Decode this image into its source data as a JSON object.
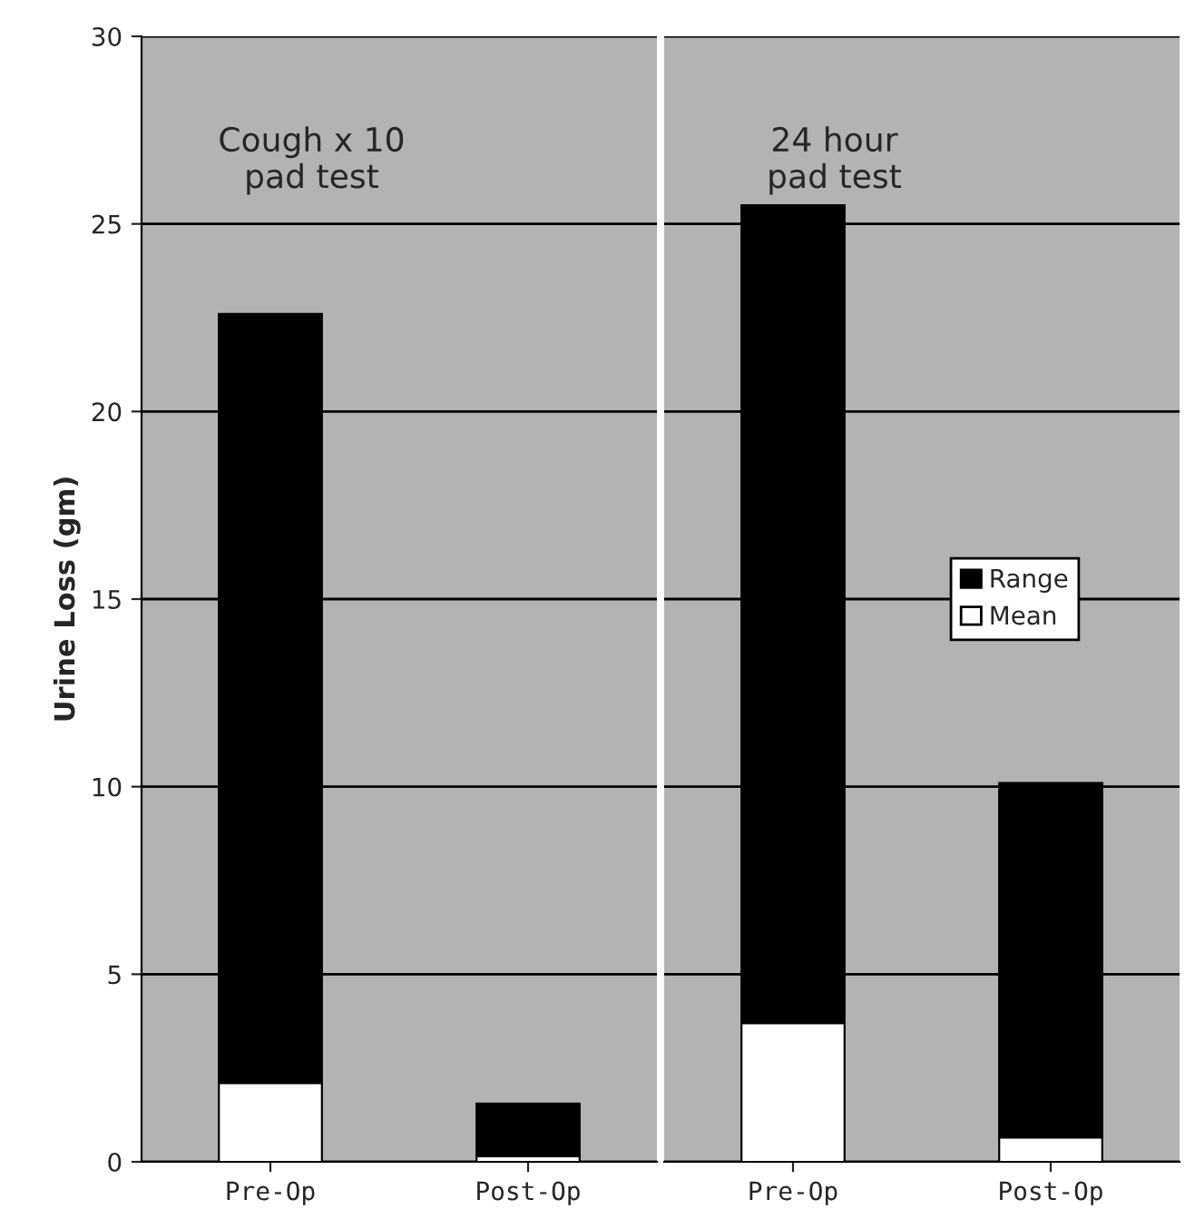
{
  "chart_data": [
    {
      "type": "bar",
      "stacked": true,
      "categories": [
        "Pre-Op",
        "Post-Op"
      ],
      "ylabel": "Urine Loss (gm)",
      "ylim": [
        0,
        30
      ],
      "yticks": [
        0,
        5,
        10,
        15,
        20,
        25,
        30
      ],
      "grid": "y",
      "annotations": [
        "Cough x 10\npad test"
      ],
      "series": [
        {
          "color": "#ffffff",
          "values": [
            2.1,
            0.15
          ]
        },
        {
          "color": "#000000",
          "values": [
            20.5,
            1.4
          ]
        }
      ]
    },
    {
      "type": "bar",
      "stacked": true,
      "categories": [
        "Pre-Op",
        "Post-Op"
      ],
      "ylim": [
        0,
        30
      ],
      "yticks": [
        0,
        5,
        10,
        15,
        20,
        25,
        30
      ],
      "grid": "y",
      "legend": "right",
      "tick_labels": "x",
      "annotations": [
        "24 hour\npad test"
      ],
      "series": [
        {
          "name": "Mean",
          "color": "#ffffff",
          "values": [
            3.7,
            0.65
          ]
        },
        {
          "name": "Range",
          "color": "#000000",
          "values": [
            21.8,
            9.45
          ]
        }
      ]
    }
  ]
}
